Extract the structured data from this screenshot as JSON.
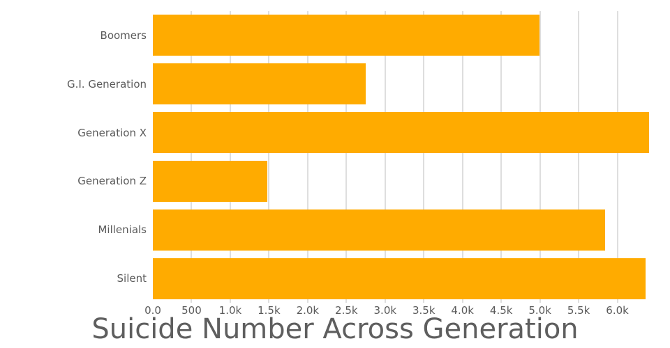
{
  "chart_data": {
    "type": "bar",
    "orientation": "horizontal",
    "title": "Suicide Number Across Generation",
    "categories": [
      "Boomers",
      "G.I. Generation",
      "Generation X",
      "Generation Z",
      "Millenials",
      "Silent"
    ],
    "values": [
      4990,
      2750,
      6410,
      1475,
      5840,
      6360
    ],
    "xlabel": "",
    "ylabel": "",
    "xlim": [
      0,
      6680
    ],
    "x_ticks": {
      "labels": [
        "0.0",
        "500",
        "1.0k",
        "1.5k",
        "2.0k",
        "2.5k",
        "3.0k",
        "3.5k",
        "4.0k",
        "4.5k",
        "5.0k",
        "5.5k",
        "6.0k"
      ],
      "values": [
        0,
        500,
        1000,
        1500,
        2000,
        2500,
        3000,
        3500,
        4000,
        4500,
        5000,
        5500,
        6000
      ]
    },
    "grid": true,
    "legend": "none",
    "colors": {
      "bar": "#ffab00",
      "gridline": "#dedede",
      "labels": "#5a5a5a",
      "title": "#5e5e5e",
      "background": "#ffffff"
    }
  }
}
